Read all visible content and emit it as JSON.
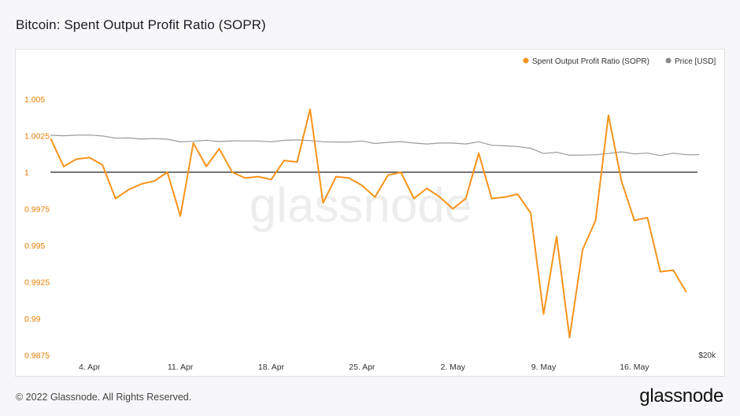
{
  "header": {
    "title": "Bitcoin: Spent Output Profit Ratio (SOPR)"
  },
  "watermark": "glassnode",
  "footer": {
    "copyright": "© 2022 Glassnode. All Rights Reserved.",
    "logo_text": "glassnode"
  },
  "colors": {
    "sopr": "#f7931a",
    "price": "#9a9a9a",
    "baseline": "#222222",
    "axis_text": "#e87e00"
  },
  "chart_data": {
    "type": "line",
    "x_labels": [
      "4. Apr",
      "11. Apr",
      "18. Apr",
      "25. Apr",
      "2. May",
      "9. May",
      "16. May"
    ],
    "x_label_dates": [
      "2022-04-04",
      "2022-04-11",
      "2022-04-18",
      "2022-04-25",
      "2022-05-02",
      "2022-05-09",
      "2022-05-16"
    ],
    "y_left": {
      "ticks": [
        0.9875,
        0.99,
        0.9925,
        0.995,
        0.9975,
        1,
        1.0025,
        1.005
      ],
      "tick_labels": [
        "0.9875",
        "0.99",
        "0.9925",
        "0.995",
        "0.9975",
        "1",
        "1.0025",
        "1.005"
      ],
      "range": [
        0.9875,
        1.0075
      ]
    },
    "y_right": {
      "tick_labels": [
        "$20k"
      ],
      "scale": "log"
    },
    "baseline": 1,
    "legend": {
      "position": "top-right",
      "entries": [
        "Spent Output Profit Ratio (SOPR)",
        "Price [USD]"
      ]
    },
    "series": [
      {
        "name": "Spent Output Profit Ratio (SOPR)",
        "axis": "left",
        "dates": [
          "2022-04-01",
          "2022-04-02",
          "2022-04-03",
          "2022-04-04",
          "2022-04-05",
          "2022-04-06",
          "2022-04-07",
          "2022-04-08",
          "2022-04-09",
          "2022-04-10",
          "2022-04-11",
          "2022-04-12",
          "2022-04-13",
          "2022-04-14",
          "2022-04-15",
          "2022-04-16",
          "2022-04-17",
          "2022-04-18",
          "2022-04-19",
          "2022-04-20",
          "2022-04-21",
          "2022-04-22",
          "2022-04-23",
          "2022-04-24",
          "2022-04-25",
          "2022-04-26",
          "2022-04-27",
          "2022-04-28",
          "2022-04-29",
          "2022-04-30",
          "2022-05-01",
          "2022-05-02",
          "2022-05-03",
          "2022-05-04",
          "2022-05-05",
          "2022-05-06",
          "2022-05-07",
          "2022-05-08",
          "2022-05-09",
          "2022-05-10",
          "2022-05-11",
          "2022-05-12",
          "2022-05-13",
          "2022-05-14",
          "2022-05-15",
          "2022-05-16",
          "2022-05-17",
          "2022-05-18",
          "2022-05-19",
          "2022-05-20"
        ],
        "values": [
          1.0023,
          1.0004,
          1.0009,
          1.001,
          1.0005,
          0.9982,
          0.9988,
          0.9992,
          0.9994,
          1.0,
          0.997,
          1.002,
          1.0004,
          1.0016,
          1.0,
          0.9996,
          0.9997,
          0.9995,
          1.0008,
          1.0007,
          1.0043,
          0.9979,
          0.9997,
          0.9996,
          0.9991,
          0.9983,
          0.9998,
          1.0,
          0.9982,
          0.9989,
          0.9983,
          0.9975,
          0.9982,
          1.0013,
          0.9982,
          0.9983,
          0.9985,
          0.9972,
          0.9903,
          0.9956,
          0.9887,
          0.9947,
          0.9967,
          1.0039,
          0.9994,
          0.9967,
          0.9969,
          0.9932,
          0.9933,
          0.9918
        ]
      },
      {
        "name": "Price [USD]",
        "axis": "right",
        "dates": [
          "2022-04-01",
          "2022-04-02",
          "2022-04-03",
          "2022-04-04",
          "2022-04-05",
          "2022-04-06",
          "2022-04-07",
          "2022-04-08",
          "2022-04-09",
          "2022-04-10",
          "2022-04-11",
          "2022-04-12",
          "2022-04-13",
          "2022-04-14",
          "2022-04-15",
          "2022-04-16",
          "2022-04-17",
          "2022-04-18",
          "2022-04-19",
          "2022-04-20",
          "2022-04-21",
          "2022-04-22",
          "2022-04-23",
          "2022-04-24",
          "2022-04-25",
          "2022-04-26",
          "2022-04-27",
          "2022-04-28",
          "2022-04-29",
          "2022-04-30",
          "2022-05-01",
          "2022-05-02",
          "2022-05-03",
          "2022-05-04",
          "2022-05-05",
          "2022-05-06",
          "2022-05-07",
          "2022-05-08",
          "2022-05-09",
          "2022-05-10",
          "2022-05-11",
          "2022-05-12",
          "2022-05-13",
          "2022-05-14",
          "2022-05-15",
          "2022-05-16",
          "2022-05-17",
          "2022-05-18",
          "2022-05-19",
          "2022-05-20",
          "2022-05-21"
        ],
        "values": [
          46300,
          45800,
          46400,
          46600,
          45500,
          43200,
          43500,
          42300,
          42800,
          42200,
          39600,
          40100,
          41200,
          39900,
          40600,
          40500,
          40400,
          39700,
          41100,
          41500,
          40800,
          39700,
          39500,
          39500,
          40400,
          38100,
          39200,
          39800,
          38500,
          37700,
          38500,
          38500,
          37700,
          39700,
          36600,
          36100,
          35500,
          34000,
          30100,
          31000,
          28900,
          29000,
          29200,
          30100,
          31300,
          29800,
          30400,
          28700,
          30300,
          29200,
          29300
        ]
      }
    ]
  }
}
